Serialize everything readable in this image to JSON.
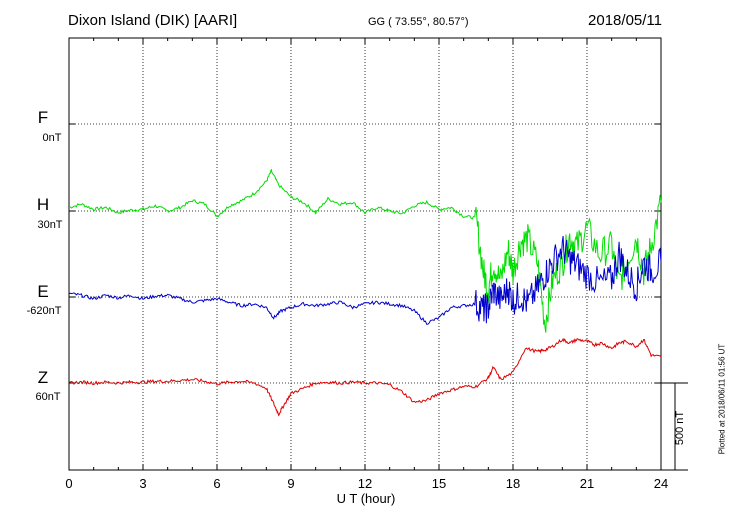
{
  "header": {
    "station": "Dixon Island (DIK)  [AARI]",
    "coords": "GG ( 73.55°,  80.57°)",
    "date": "2018/05/11"
  },
  "components": [
    {
      "name": "F",
      "baseline": "0nT",
      "color": "#ffa500"
    },
    {
      "name": "H",
      "baseline": "30nT",
      "color": "#00dd00"
    },
    {
      "name": "E",
      "baseline": "-620nT",
      "color": "#0000cc"
    },
    {
      "name": "Z",
      "baseline": "60nT",
      "color": "#dd0000"
    }
  ],
  "axis": {
    "xlabel": "U T (hour)",
    "ticks": [
      "0",
      "3",
      "6",
      "9",
      "12",
      "15",
      "18",
      "21",
      "24"
    ]
  },
  "scale_label": "500 nT",
  "plotted_note": "Plotted at 2018/06/11 01:56 UT",
  "chart_data": {
    "type": "line",
    "title": "Dixon Island (DIK)  [AARI]",
    "xlabel": "U T (hour)",
    "ylabel": "",
    "xlim": [
      0,
      24
    ],
    "grid": true,
    "scale_bar_nT": 500,
    "series": [
      {
        "name": "H",
        "color": "#00dd00",
        "baseline_nT": 30,
        "x": [
          0,
          0.5,
          1,
          1.5,
          2,
          2.5,
          3,
          3.5,
          4,
          4.5,
          5,
          5.5,
          6,
          6.5,
          7,
          7.5,
          8,
          8.2,
          8.5,
          9,
          9.5,
          10,
          10.5,
          11,
          11.5,
          12,
          12.5,
          13,
          13.5,
          14,
          14.5,
          15,
          15.5,
          16,
          16.5,
          16.8,
          17,
          17.2,
          17.5,
          17.8,
          18,
          18.3,
          18.6,
          19,
          19.3,
          19.6,
          20,
          20.3,
          20.6,
          21,
          21.5,
          22,
          22.3,
          22.6,
          23,
          23.3,
          23.6,
          24
        ],
        "y": [
          20,
          40,
          10,
          20,
          -10,
          5,
          10,
          30,
          0,
          20,
          60,
          40,
          -30,
          30,
          60,
          100,
          170,
          230,
          150,
          80,
          50,
          -10,
          70,
          40,
          50,
          -10,
          20,
          0,
          -15,
          30,
          50,
          10,
          20,
          -30,
          -40,
          -350,
          -450,
          -300,
          -400,
          -220,
          -350,
          -180,
          -160,
          -300,
          -650,
          -400,
          -300,
          -150,
          -200,
          -100,
          -250,
          -200,
          -420,
          -300,
          -150,
          -350,
          -200,
          50
        ]
      },
      {
        "name": "E",
        "color": "#0000cc",
        "baseline_nT": -620,
        "x": [
          0,
          0.5,
          1,
          1.5,
          2,
          2.5,
          3,
          3.5,
          4,
          4.5,
          5,
          5.5,
          6,
          6.5,
          7,
          7.5,
          8,
          8.3,
          8.6,
          9,
          9.5,
          10,
          10.5,
          11,
          11.5,
          12,
          12.5,
          13,
          13.5,
          14,
          14.5,
          15,
          15.5,
          16,
          16.5,
          16.8,
          17,
          17.2,
          17.5,
          17.8,
          18,
          18.3,
          18.6,
          19,
          19.3,
          19.6,
          20,
          20.3,
          20.6,
          21,
          21.5,
          22,
          22.3,
          22.6,
          23,
          23.3,
          23.6,
          24
        ],
        "y": [
          20,
          10,
          -10,
          10,
          -5,
          10,
          -10,
          5,
          10,
          -10,
          -30,
          -20,
          -10,
          -30,
          -50,
          -40,
          -60,
          -120,
          -80,
          -60,
          -40,
          -50,
          -40,
          -30,
          -60,
          -40,
          -30,
          -40,
          -50,
          -80,
          -150,
          -120,
          -60,
          -50,
          -40,
          -70,
          -60,
          40,
          -20,
          50,
          -20,
          10,
          -40,
          50,
          130,
          200,
          280,
          220,
          180,
          130,
          80,
          100,
          250,
          150,
          60,
          200,
          150,
          200
        ]
      },
      {
        "name": "Z",
        "color": "#dd0000",
        "baseline_nT": 60,
        "x": [
          0,
          0.5,
          1,
          1.5,
          2,
          2.5,
          3,
          3.5,
          4,
          4.5,
          5,
          5.5,
          6,
          6.5,
          7,
          7.5,
          8,
          8.3,
          8.5,
          8.7,
          9,
          9.5,
          10,
          10.5,
          11,
          11.5,
          12,
          12.5,
          13,
          13.5,
          14,
          14.5,
          15,
          15.5,
          16,
          16.5,
          17,
          17.2,
          17.5,
          18,
          18.5,
          19,
          19.3,
          19.6,
          20,
          20.3,
          20.6,
          21,
          21.3,
          21.6,
          22,
          22.3,
          22.6,
          23,
          23.3,
          23.6,
          24
        ],
        "y": [
          0,
          5,
          0,
          5,
          0,
          5,
          5,
          10,
          10,
          15,
          20,
          10,
          -5,
          5,
          10,
          0,
          -30,
          -120,
          -180,
          -130,
          -60,
          -30,
          0,
          5,
          0,
          5,
          0,
          0,
          -10,
          -50,
          -110,
          -100,
          -60,
          -40,
          -20,
          -20,
          30,
          90,
          20,
          60,
          200,
          180,
          190,
          210,
          250,
          230,
          250,
          240,
          220,
          230,
          200,
          230,
          240,
          210,
          250,
          160,
          150
        ]
      }
    ]
  }
}
